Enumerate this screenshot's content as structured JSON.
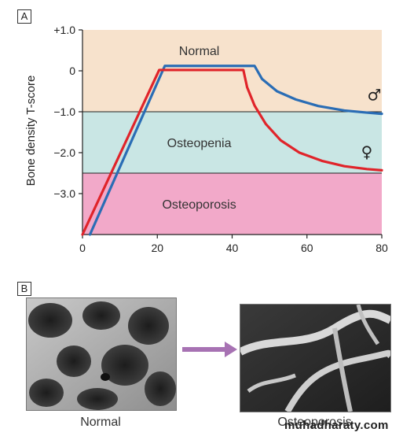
{
  "panel_a": {
    "label": "A"
  },
  "panel_b": {
    "label": "B",
    "caption_left": "Normal",
    "caption_right": "Osteoporosis",
    "arrow_color": "#a772b3"
  },
  "watermark": "muhadharaty.com",
  "colors": {
    "normal_zone": "#f7e2cc",
    "osteopenia_zone": "#c9e6e4",
    "osteoporosis_zone": "#f2a9c9",
    "male_line": "#2a6db5",
    "female_line": "#e0242a"
  },
  "chart_data": {
    "type": "line",
    "ylabel": "Bone density T-score",
    "xlabel": "",
    "x_ticks": [
      "0",
      "20",
      "40",
      "60",
      "80"
    ],
    "y_ticks": [
      "+1.0",
      "0",
      "−1.0",
      "−2.0",
      "−3.0"
    ],
    "xlim": [
      0,
      80
    ],
    "ylim": [
      -4.0,
      1.0
    ],
    "zones": [
      {
        "label": "Normal",
        "from": -1.0,
        "to": 1.0,
        "color": "#f7e2cc"
      },
      {
        "label": "Osteopenia",
        "from": -2.5,
        "to": -1.0,
        "color": "#c9e6e4"
      },
      {
        "label": "Osteoporosis",
        "from": -4.0,
        "to": -2.5,
        "color": "#f2a9c9"
      }
    ],
    "series": [
      {
        "symbol": "♂",
        "color": "#2a6db5",
        "points": [
          [
            2,
            -4.0
          ],
          [
            22,
            0.12
          ],
          [
            46,
            0.12
          ],
          [
            48,
            -0.2
          ],
          [
            52,
            -0.5
          ],
          [
            57,
            -0.7
          ],
          [
            63,
            -0.86
          ],
          [
            70,
            -0.97
          ],
          [
            76,
            -1.02
          ],
          [
            80,
            -1.05
          ]
        ]
      },
      {
        "symbol": "♀",
        "color": "#e0242a",
        "points": [
          [
            0,
            -4.0
          ],
          [
            20.5,
            0.02
          ],
          [
            43,
            0.02
          ],
          [
            44,
            -0.4
          ],
          [
            46,
            -0.85
          ],
          [
            49,
            -1.3
          ],
          [
            53,
            -1.7
          ],
          [
            58,
            -2.0
          ],
          [
            64,
            -2.2
          ],
          [
            70,
            -2.33
          ],
          [
            76,
            -2.4
          ],
          [
            80,
            -2.43
          ]
        ]
      }
    ]
  }
}
